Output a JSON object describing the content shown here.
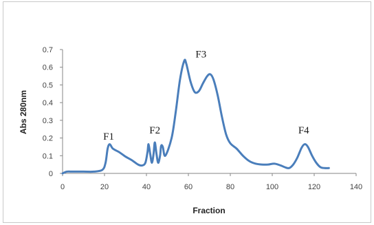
{
  "chart_data": {
    "type": "line",
    "title": "",
    "xlabel": "Fraction",
    "ylabel": "Abs 280nm",
    "xlim": [
      0,
      140
    ],
    "ylim": [
      0,
      0.7
    ],
    "x_ticks": [
      "0",
      "20",
      "40",
      "60",
      "80",
      "100",
      "120",
      "140"
    ],
    "y_ticks": [
      "0",
      "0.1",
      "0.2",
      "0.3",
      "0.4",
      "0.5",
      "0.6",
      "0.7"
    ],
    "grid": false,
    "legend": "none",
    "line_color": "#4a7ebb",
    "series": [
      {
        "x": [
          0,
          2,
          5,
          10,
          15,
          19,
          20.5,
          21.5,
          22.5,
          24,
          27,
          30,
          33,
          36,
          38,
          39.5,
          40.5,
          41,
          41.8,
          42.6,
          43.4,
          44,
          44.8,
          45.6,
          46.5,
          47,
          47.8,
          49,
          52,
          54,
          56,
          58,
          59,
          61,
          63,
          65,
          67,
          69,
          70.5,
          72,
          74,
          76,
          78,
          80,
          83,
          86,
          89,
          92,
          95,
          98,
          101,
          104,
          106,
          108,
          110,
          112,
          114,
          115.5,
          117,
          119,
          121,
          123,
          125,
          127
        ],
        "y": [
          0.0,
          0.01,
          0.01,
          0.01,
          0.01,
          0.02,
          0.06,
          0.14,
          0.165,
          0.14,
          0.12,
          0.095,
          0.075,
          0.05,
          0.045,
          0.06,
          0.12,
          0.165,
          0.11,
          0.06,
          0.11,
          0.175,
          0.11,
          0.06,
          0.1,
          0.155,
          0.15,
          0.1,
          0.2,
          0.35,
          0.53,
          0.635,
          0.62,
          0.52,
          0.46,
          0.465,
          0.51,
          0.55,
          0.56,
          0.53,
          0.44,
          0.32,
          0.22,
          0.17,
          0.14,
          0.1,
          0.07,
          0.055,
          0.05,
          0.05,
          0.055,
          0.045,
          0.035,
          0.03,
          0.05,
          0.09,
          0.145,
          0.165,
          0.15,
          0.1,
          0.06,
          0.035,
          0.03,
          0.03
        ]
      }
    ],
    "annotations": [
      {
        "text": "F1",
        "x": 22,
        "y": 0.175
      },
      {
        "text": "F2",
        "x": 44,
        "y": 0.21
      },
      {
        "text": "F3",
        "x": 66,
        "y": 0.64
      },
      {
        "text": "F4",
        "x": 115,
        "y": 0.21
      }
    ]
  }
}
